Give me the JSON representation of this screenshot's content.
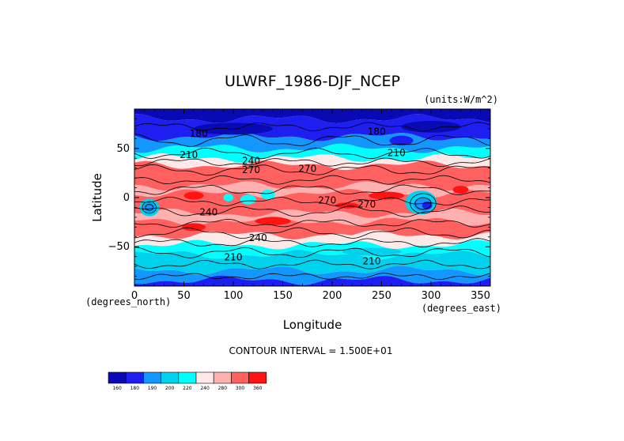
{
  "chart_data": {
    "type": "heatmap",
    "title": "ULWRF_1986-DJF_NCEP",
    "units_note": "(units:W/m^2)",
    "xlabel": "Longitude",
    "ylabel": "Latitude",
    "x_unit_note": "(degrees_east)",
    "y_unit_note": "(degrees_north)",
    "xlim": [
      0,
      360
    ],
    "ylim": [
      -90,
      90
    ],
    "x_ticks": [
      "0",
      "50",
      "100",
      "150",
      "200",
      "250",
      "300",
      "350"
    ],
    "x_tick_values": [
      0,
      50,
      100,
      150,
      200,
      250,
      300,
      350
    ],
    "y_ticks": [
      "50",
      "0",
      "−50"
    ],
    "y_tick_values": [
      50,
      0,
      -50
    ],
    "contour_interval_text": "CONTOUR INTERVAL = 1.500E+01",
    "contour_labels": [
      {
        "text": "180",
        "lon": 65,
        "lat": 62
      },
      {
        "text": "180",
        "lon": 245,
        "lat": 64
      },
      {
        "text": "210",
        "lon": 55,
        "lat": 40
      },
      {
        "text": "210",
        "lon": 265,
        "lat": 42
      },
      {
        "text": "240",
        "lon": 118,
        "lat": 34
      },
      {
        "text": "270",
        "lon": 118,
        "lat": 25
      },
      {
        "text": "270",
        "lon": 175,
        "lat": 26
      },
      {
        "text": "240",
        "lon": 75,
        "lat": -18
      },
      {
        "text": "270",
        "lon": 195,
        "lat": -6
      },
      {
        "text": "270",
        "lon": 235,
        "lat": -10
      },
      {
        "text": "240",
        "lon": 125,
        "lat": -44
      },
      {
        "text": "210",
        "lon": 100,
        "lat": -64
      },
      {
        "text": "210",
        "lon": 240,
        "lat": -68
      }
    ],
    "colorbar": {
      "levels": [
        "160",
        "180",
        "190",
        "200",
        "220",
        "240",
        "280",
        "300",
        "360"
      ],
      "colors": [
        "#0a0ab4",
        "#1e1ef0",
        "#1496ff",
        "#00d2ee",
        "#00ffff",
        "#ffe8e8",
        "#ffb0b0",
        "#ff6060",
        "#ff1414"
      ]
    }
  }
}
